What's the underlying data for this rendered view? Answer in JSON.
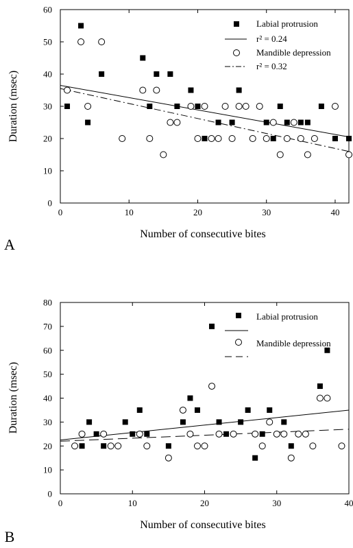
{
  "chart_data": [
    {
      "panel": "A",
      "type": "scatter",
      "xlabel": "Number of consecutive bites",
      "ylabel": "Duration (msec)",
      "xlim": [
        0,
        42
      ],
      "ylim": [
        0,
        60
      ],
      "xticks": [
        "0",
        "10",
        "20",
        "30",
        "40"
      ],
      "yticks": [
        "0",
        "10",
        "20",
        "30",
        "40",
        "50",
        "60"
      ],
      "grid": false,
      "legend_position": "top-right",
      "series": [
        {
          "name": "Labial protrusion",
          "marker": "filled-square",
          "fit_label": "r² = 0.24",
          "fit_line": "solid",
          "fit": [
            [
              0,
              36.5
            ],
            [
              42,
              20.5
            ]
          ],
          "points": [
            [
              1,
              30
            ],
            [
              3,
              55
            ],
            [
              4,
              25
            ],
            [
              6,
              40
            ],
            [
              12,
              45
            ],
            [
              13,
              30
            ],
            [
              14,
              40
            ],
            [
              16,
              40
            ],
            [
              17,
              30
            ],
            [
              19,
              35
            ],
            [
              20,
              30
            ],
            [
              21,
              20
            ],
            [
              23,
              25
            ],
            [
              25,
              25
            ],
            [
              26,
              35
            ],
            [
              30,
              25
            ],
            [
              31,
              20
            ],
            [
              32,
              30
            ],
            [
              33,
              25
            ],
            [
              35,
              25
            ],
            [
              36,
              25
            ],
            [
              38,
              30
            ],
            [
              40,
              20
            ],
            [
              42,
              20
            ]
          ]
        },
        {
          "name": "Mandible depression",
          "marker": "open-circle",
          "fit_label": "r² = 0.32",
          "fit_line": "dash-dot",
          "fit": [
            [
              0,
              35.5
            ],
            [
              42,
              16
            ]
          ],
          "points": [
            [
              1,
              35
            ],
            [
              3,
              50
            ],
            [
              4,
              30
            ],
            [
              6,
              50
            ],
            [
              9,
              20
            ],
            [
              12,
              35
            ],
            [
              13,
              20
            ],
            [
              14,
              35
            ],
            [
              15,
              15
            ],
            [
              16,
              25
            ],
            [
              17,
              25
            ],
            [
              19,
              30
            ],
            [
              20,
              20
            ],
            [
              21,
              30
            ],
            [
              22,
              20
            ],
            [
              23,
              20
            ],
            [
              24,
              30
            ],
            [
              25,
              20
            ],
            [
              26,
              30
            ],
            [
              27,
              30
            ],
            [
              28,
              20
            ],
            [
              29,
              30
            ],
            [
              30,
              20
            ],
            [
              31,
              25
            ],
            [
              32,
              15
            ],
            [
              33,
              20
            ],
            [
              34,
              25
            ],
            [
              35,
              20
            ],
            [
              36,
              15
            ],
            [
              37,
              20
            ],
            [
              40,
              30
            ],
            [
              42,
              15
            ]
          ]
        }
      ]
    },
    {
      "panel": "B",
      "type": "scatter",
      "xlabel": "Number of consecutive bites",
      "ylabel": "Duration (msec)",
      "xlim": [
        0,
        40
      ],
      "ylim": [
        0,
        80
      ],
      "xticks": [
        "0",
        "10",
        "20",
        "30",
        "40"
      ],
      "yticks": [
        "0",
        "10",
        "20",
        "30",
        "40",
        "50",
        "60",
        "70",
        "80"
      ],
      "grid": false,
      "legend_position": "top-right",
      "series": [
        {
          "name": "Labial protrusion",
          "marker": "filled-square",
          "fit_line": "solid",
          "fit": [
            [
              0,
              22.5
            ],
            [
              40,
              35
            ]
          ],
          "points": [
            [
              3,
              20
            ],
            [
              4,
              30
            ],
            [
              5,
              25
            ],
            [
              6,
              20
            ],
            [
              9,
              30
            ],
            [
              10,
              25
            ],
            [
              11,
              35
            ],
            [
              12,
              25
            ],
            [
              15,
              20
            ],
            [
              17,
              30
            ],
            [
              18,
              40
            ],
            [
              19,
              35
            ],
            [
              21,
              70
            ],
            [
              22,
              30
            ],
            [
              23,
              25
            ],
            [
              25,
              30
            ],
            [
              26,
              35
            ],
            [
              27,
              15
            ],
            [
              28,
              25
            ],
            [
              29,
              35
            ],
            [
              31,
              30
            ],
            [
              32,
              20
            ],
            [
              36,
              45
            ],
            [
              37,
              60
            ]
          ]
        },
        {
          "name": "Mandible depression",
          "marker": "open-circle",
          "fit_line": "long-dash",
          "fit": [
            [
              0,
              22
            ],
            [
              40,
              27
            ]
          ],
          "points": [
            [
              2,
              20
            ],
            [
              3,
              25
            ],
            [
              6,
              25
            ],
            [
              7,
              20
            ],
            [
              8,
              20
            ],
            [
              11,
              25
            ],
            [
              12,
              20
            ],
            [
              15,
              15
            ],
            [
              17,
              35
            ],
            [
              18,
              25
            ],
            [
              19,
              20
            ],
            [
              20,
              20
            ],
            [
              21,
              45
            ],
            [
              22,
              25
            ],
            [
              24,
              25
            ],
            [
              27,
              25
            ],
            [
              28,
              20
            ],
            [
              29,
              30
            ],
            [
              30,
              25
            ],
            [
              31,
              25
            ],
            [
              32,
              15
            ],
            [
              33,
              25
            ],
            [
              34,
              25
            ],
            [
              35,
              20
            ],
            [
              36,
              40
            ],
            [
              37,
              40
            ],
            [
              39,
              20
            ]
          ]
        }
      ]
    }
  ]
}
